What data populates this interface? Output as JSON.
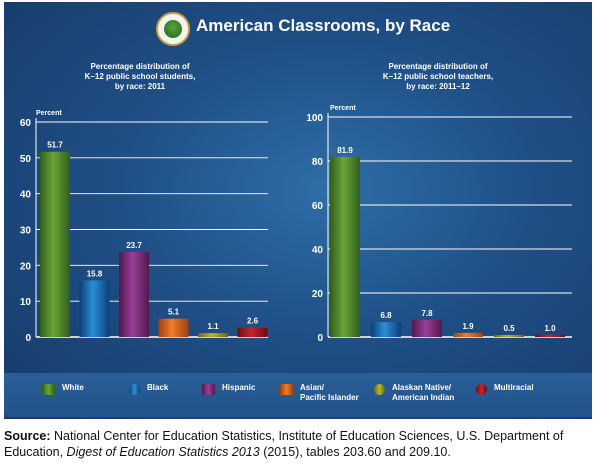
{
  "header": {
    "title": "American Classrooms, by Race"
  },
  "chart_data": [
    {
      "type": "bar",
      "title": "Percentage distribution of\nK–12 public school students,\nby race: 2011",
      "ylabel": "Percent",
      "ylim": [
        0,
        60
      ],
      "yticks": [
        0,
        10,
        20,
        30,
        40,
        50,
        60
      ],
      "categories": [
        "White",
        "Black",
        "Hispanic",
        "Asian/ Pacific Islander",
        "Alaskan Native/ American Indian",
        "Multiracial"
      ],
      "values": [
        51.7,
        15.8,
        23.7,
        5.1,
        1.1,
        2.6
      ],
      "value_labels": [
        "51.7",
        "15.8",
        "23.7",
        "5.1",
        "1.1",
        "2.6"
      ]
    },
    {
      "type": "bar",
      "title": "Percentage distribution of\nK–12 public school teachers,\nby race: 2011–12",
      "ylabel": "Percent",
      "ylim": [
        0,
        100
      ],
      "yticks": [
        0,
        20,
        40,
        60,
        80,
        100
      ],
      "categories": [
        "White",
        "Black",
        "Hispanic",
        "Asian/ Pacific Islander",
        "Alaskan Native/ American Indian",
        "Multiracial"
      ],
      "values": [
        81.9,
        6.8,
        7.8,
        1.9,
        0.5,
        1.0
      ],
      "value_labels": [
        "81.9",
        "6.8",
        "7.8",
        "1.9",
        "0.5",
        "1.0"
      ]
    }
  ],
  "legend": [
    {
      "label": "White",
      "color": "#6aa63a",
      "dark": "#2f5e1a",
      "icon": "square"
    },
    {
      "label": "Black",
      "color": "#2a8ed6",
      "dark": "#0d3f7a",
      "icon": "circle"
    },
    {
      "label": "Hispanic",
      "color": "#9a3f96",
      "dark": "#52184f",
      "icon": "square"
    },
    {
      "label": "Asian/\nPacific Islander",
      "color": "#f07c2c",
      "dark": "#a0400e",
      "icon": "square"
    },
    {
      "label": "Alaskan Native/\nAmerican Indian",
      "color": "#b9b52a",
      "dark": "#6a6710",
      "icon": "circle"
    },
    {
      "label": "Multiracial",
      "color": "#c8262e",
      "dark": "#6a0c12",
      "icon": "circle"
    }
  ],
  "source": {
    "label": "Source:",
    "text1": "National Center for Education Statistics, Institute of Education Sciences, U.S. Department of Education, ",
    "publication": "Digest of Education Statistics 2013",
    "text2": " (2015), tables 203.60 and 209.10."
  }
}
